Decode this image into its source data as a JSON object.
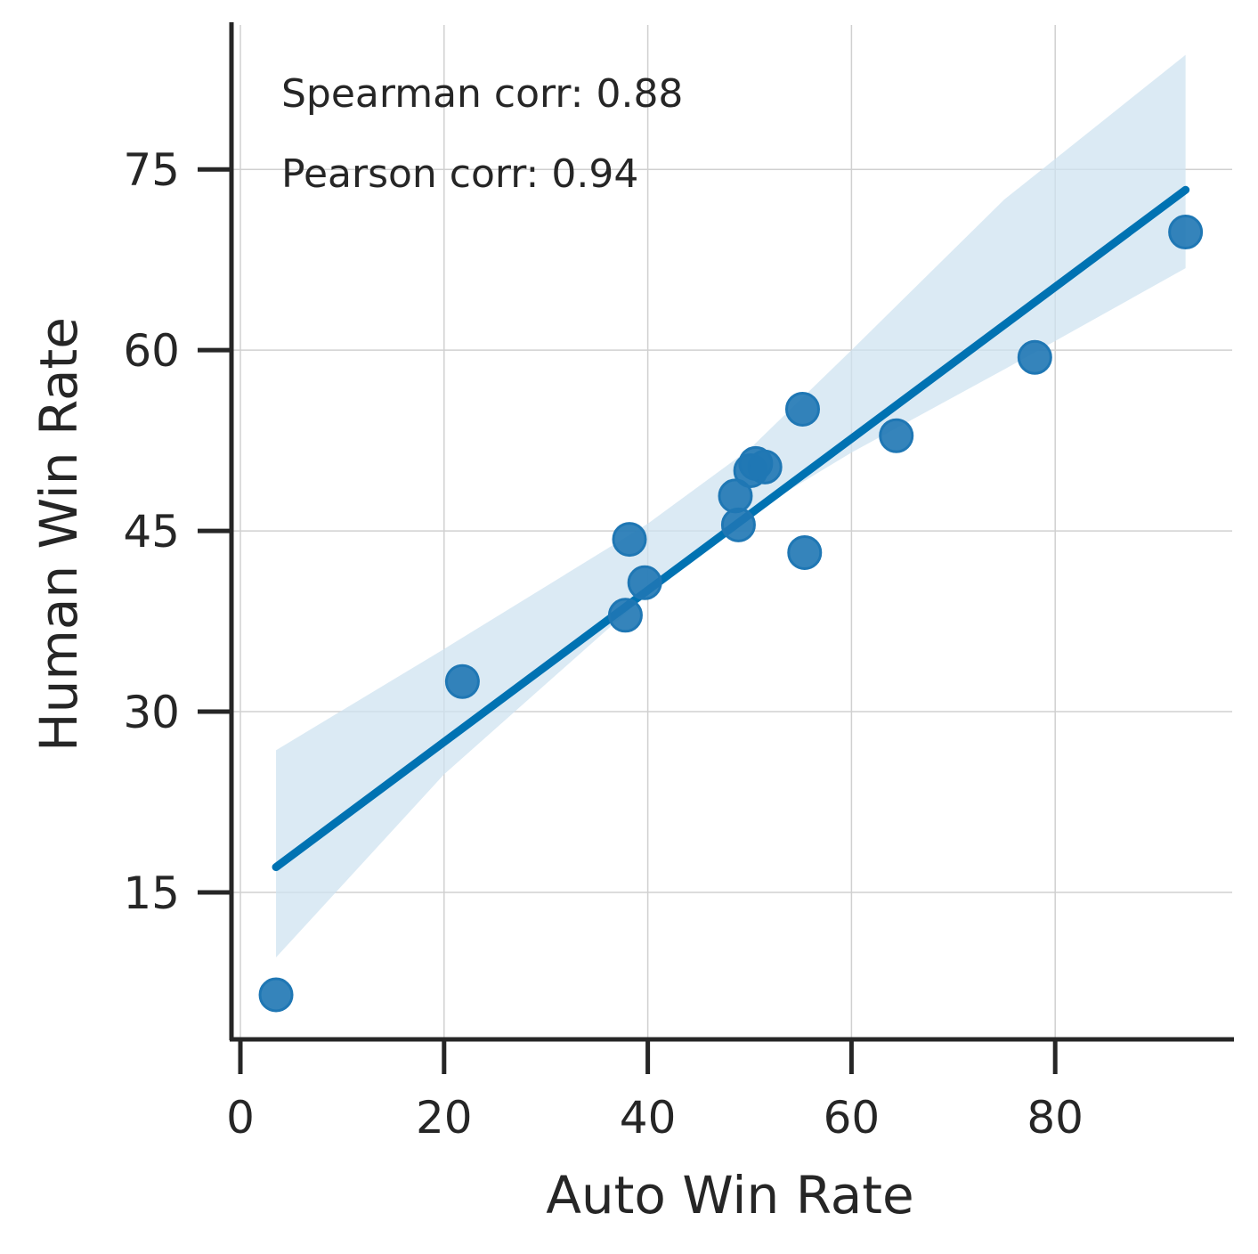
{
  "chart_data": {
    "type": "scatter",
    "title": "",
    "xlabel": "Auto Win Rate",
    "ylabel": "Human Win Rate",
    "xlim": [
      -1,
      97.5
    ],
    "ylim": [
      2.5,
      87
    ],
    "xticks": [
      0,
      20,
      40,
      60,
      80
    ],
    "yticks": [
      15,
      30,
      45,
      60,
      75
    ],
    "xtick_labels": [
      "0",
      "20",
      "40",
      "60",
      "80"
    ],
    "ytick_labels": [
      "15",
      "30",
      "45",
      "60",
      "75"
    ],
    "grid": true,
    "legend": null,
    "annotations": [
      {
        "text": "Spearman corr: 0.88",
        "label": "Spearman corr",
        "value": 0.88
      },
      {
        "text": "Pearson corr: 0.94",
        "label": "Pearson corr",
        "value": 0.94
      }
    ],
    "series": [
      {
        "name": "models",
        "kind": "scatter",
        "color": "#1f77b4",
        "points": [
          {
            "x": 3.5,
            "y": 6.5
          },
          {
            "x": 21.8,
            "y": 32.5
          },
          {
            "x": 37.8,
            "y": 38.0
          },
          {
            "x": 38.2,
            "y": 44.3
          },
          {
            "x": 39.7,
            "y": 40.7
          },
          {
            "x": 48.6,
            "y": 47.9
          },
          {
            "x": 48.9,
            "y": 45.5
          },
          {
            "x": 50.1,
            "y": 50.0
          },
          {
            "x": 50.6,
            "y": 50.6
          },
          {
            "x": 51.5,
            "y": 50.3
          },
          {
            "x": 55.2,
            "y": 55.1
          },
          {
            "x": 55.4,
            "y": 43.2
          },
          {
            "x": 64.4,
            "y": 52.9
          },
          {
            "x": 78.0,
            "y": 59.4
          },
          {
            "x": 92.8,
            "y": 69.8
          }
        ]
      },
      {
        "name": "regression fit",
        "kind": "line",
        "color": "#0072b2",
        "points": [
          {
            "x": 3.5,
            "y": 17.1
          },
          {
            "x": 92.8,
            "y": 73.3
          }
        ]
      },
      {
        "name": "95% confidence band",
        "kind": "area",
        "color": "#cfe3f0",
        "upper": [
          {
            "x": 3.5,
            "y": 26.8
          },
          {
            "x": 20,
            "y": 35.2
          },
          {
            "x": 40,
            "y": 45.6
          },
          {
            "x": 50,
            "y": 51.8
          },
          {
            "x": 60,
            "y": 60.0
          },
          {
            "x": 75,
            "y": 72.5
          },
          {
            "x": 92.8,
            "y": 84.5
          }
        ],
        "lower": [
          {
            "x": 3.5,
            "y": 9.6
          },
          {
            "x": 20,
            "y": 24.8
          },
          {
            "x": 40,
            "y": 39.8
          },
          {
            "x": 50,
            "y": 46.4
          },
          {
            "x": 60,
            "y": 51.5
          },
          {
            "x": 75,
            "y": 58.4
          },
          {
            "x": 92.8,
            "y": 66.8
          }
        ]
      }
    ]
  },
  "colors": {
    "point_fill": "#1f77b4",
    "point_edge": "#1f77b4",
    "line": "#0072b2",
    "band": "#cfe3f0",
    "axis": "#262626",
    "grid": "#d0d0d0",
    "text": "#262626"
  }
}
